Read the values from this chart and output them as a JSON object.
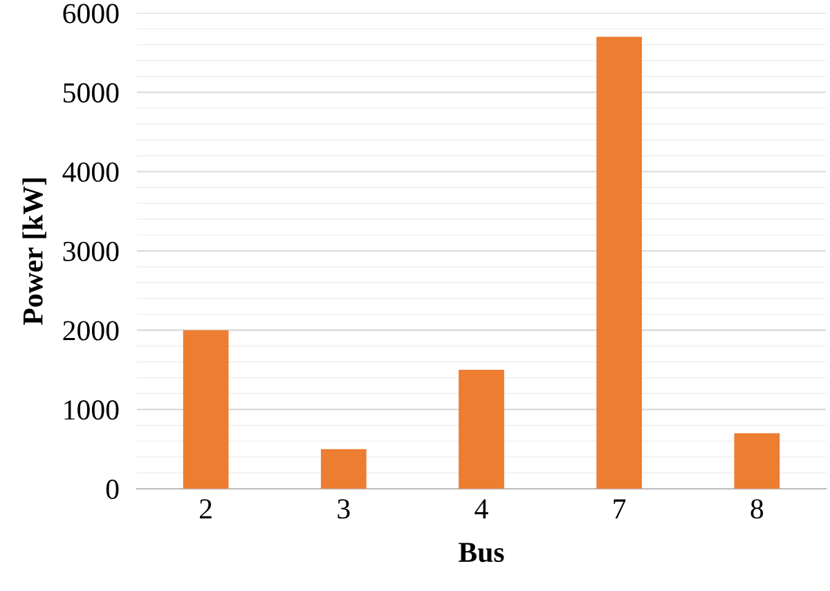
{
  "chart_data": {
    "type": "bar",
    "xlabel": "Bus",
    "ylabel": "Power [kW]",
    "categories": [
      "2",
      "3",
      "4",
      "7",
      "8"
    ],
    "values": [
      2000,
      500,
      1500,
      5700,
      700
    ],
    "color": "#ed7d31",
    "ylim": [
      0,
      6000
    ],
    "yticks": [
      0,
      {
        "value": 200,
        "label": null
      },
      {
        "value": 400,
        "label": null
      },
      {
        "value": 600,
        "label": null
      },
      {
        "value": 800,
        "label": null
      },
      1000,
      {
        "value": 1200,
        "label": null
      },
      {
        "value": 1400,
        "label": null
      },
      {
        "value": 1600,
        "label": null
      },
      {
        "value": 1800,
        "label": null
      },
      2000,
      {
        "value": 2200,
        "label": null
      },
      {
        "value": 2400,
        "label": null
      },
      {
        "value": 2600,
        "label": null
      },
      {
        "value": 2800,
        "label": null
      },
      3000,
      {
        "value": 3200,
        "label": null
      },
      {
        "value": 3400,
        "label": null
      },
      {
        "value": 3600,
        "label": null
      },
      {
        "value": 3800,
        "label": null
      },
      4000,
      {
        "value": 4200,
        "label": null
      },
      {
        "value": 4400,
        "label": null
      },
      {
        "value": 4600,
        "label": null
      },
      {
        "value": 4800,
        "label": null
      },
      5000,
      {
        "value": 5200,
        "label": null
      },
      {
        "value": 5400,
        "label": null
      },
      {
        "value": 5600,
        "label": null
      },
      {
        "value": 5800,
        "label": null
      },
      6000
    ],
    "grid": "y"
  }
}
